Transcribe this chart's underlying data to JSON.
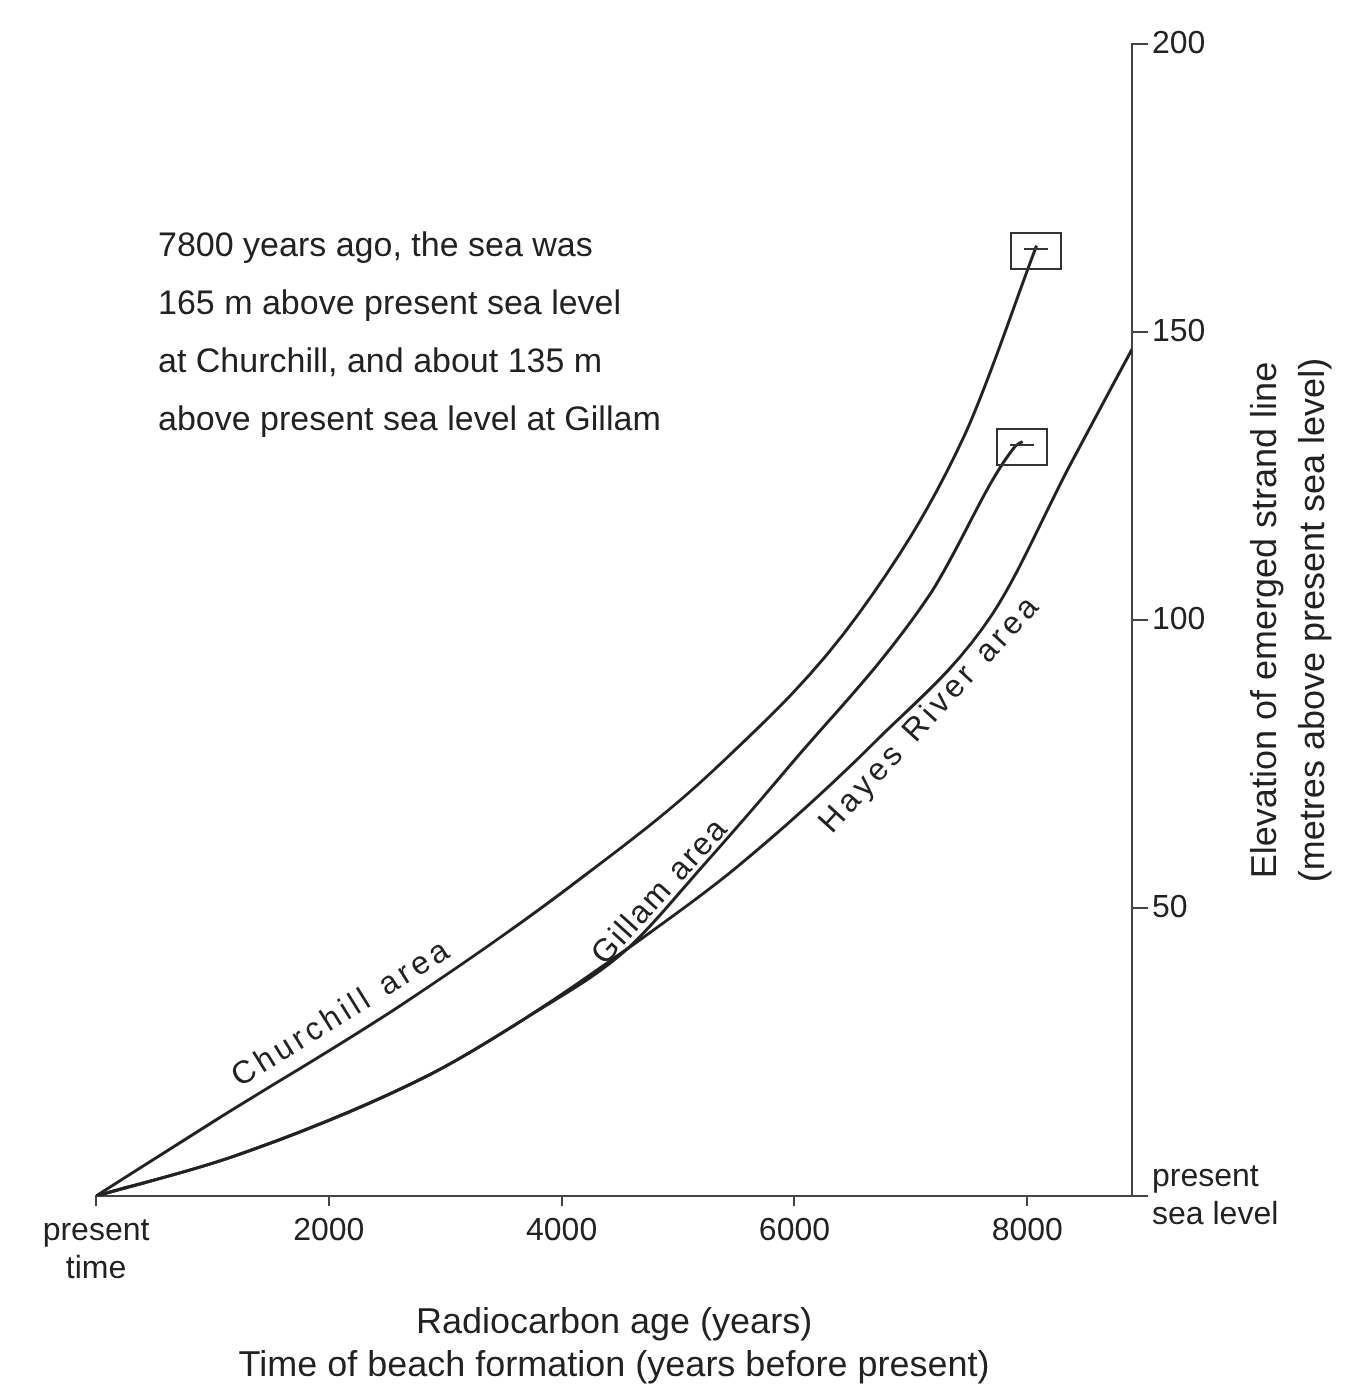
{
  "chart_data": {
    "type": "line",
    "xlabel": "Radiocarbon age (years)\nTime of beach formation (years before present)",
    "ylabel": "Elevation of emerged strand line\n(metres above present sea level)",
    "annotations": [
      "7800 years ago, the sea was\n165 m above present sea level\nat Churchill, and about 135 m\nabove present sea level at Gillam"
    ],
    "xlim": [
      0,
      8900
    ],
    "xticks": [
      {
        "value": 0,
        "label": "present\ntime"
      },
      2000,
      4000,
      6000,
      8000
    ],
    "ylim": [
      0,
      200
    ],
    "yticks": [
      {
        "value": 0,
        "label": "present\nsea level"
      },
      50,
      100,
      150,
      200
    ],
    "grid": false,
    "legend": false,
    "marker": "none",
    "line_style": "solid",
    "series": [
      {
        "name": "Churchill area",
        "color": "#222222",
        "x": [
          0,
          1015,
          2610,
          4090,
          5310,
          6550,
          7460,
          8080
        ],
        "values": [
          0,
          13,
          33,
          54,
          74,
          101,
          132,
          165
        ]
      },
      {
        "name": "Gillam area",
        "color": "#222222",
        "x": [
          0,
          1200,
          2860,
          3700,
          4570,
          5200,
          5930,
          7150,
          7890,
          7960
        ],
        "values": [
          0,
          7,
          21,
          31,
          43,
          57,
          74,
          104,
          130,
          131
        ]
      },
      {
        "name": "Hayes River area",
        "color": "#222222",
        "x": [
          0,
          1200,
          2860,
          3700,
          4570,
          5500,
          6700,
          7700,
          8370,
          8900
        ],
        "values": [
          0,
          7,
          21,
          31,
          43,
          57,
          79,
          101,
          127,
          147
        ]
      }
    ]
  }
}
